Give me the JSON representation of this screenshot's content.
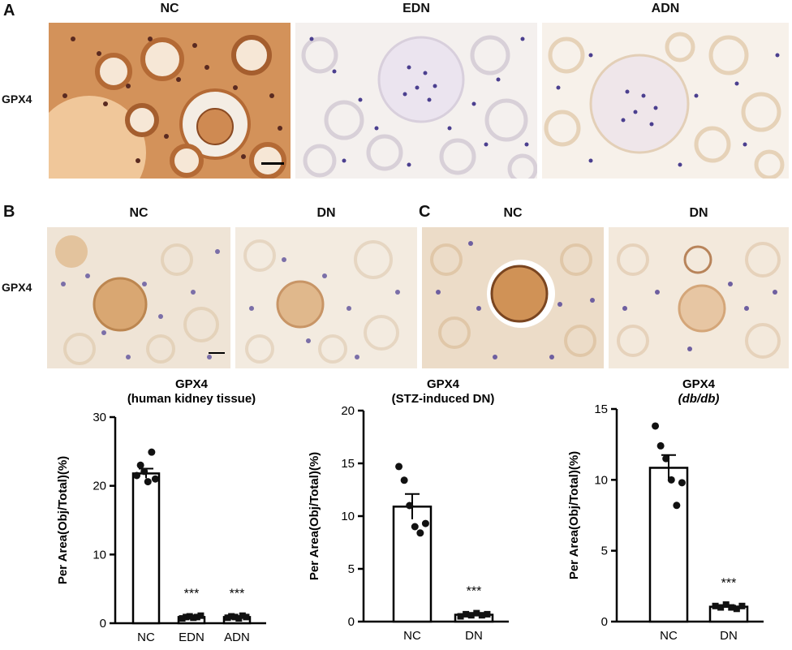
{
  "panel_a": {
    "letter": "A",
    "row_label": "GPX4",
    "columns": [
      "NC",
      "EDN",
      "ADN"
    ]
  },
  "panel_b": {
    "letter": "B",
    "row_label": "GPX4",
    "columns": [
      "NC",
      "DN"
    ]
  },
  "panel_c": {
    "letter": "C",
    "columns": [
      "NC",
      "DN"
    ]
  },
  "colors": {
    "strong_stain": "#c8844a",
    "weak_stain": "#e9cfae",
    "nuclei": "#4b3f8f",
    "background": "#f4ede4"
  },
  "chart_data": [
    {
      "type": "bar",
      "title": "GPX4",
      "subtitle": "(human kidney tissue)",
      "ylabel": "Per Area(Obj/Total)(%)",
      "categories": [
        "NC",
        "EDN",
        "ADN"
      ],
      "values": [
        21.8,
        0.9,
        0.9
      ],
      "errors": [
        0.7,
        0.12,
        0.12
      ],
      "points": [
        [
          21.5,
          23.0,
          22.1,
          20.6,
          24.9,
          21.0
        ],
        [
          0.7,
          0.9,
          1.0,
          0.8,
          0.9,
          1.1
        ],
        [
          0.8,
          1.0,
          0.9,
          0.7,
          1.1,
          0.9
        ]
      ],
      "significance": [
        "",
        "***",
        "***"
      ],
      "ylim": [
        0,
        30
      ],
      "yticks": [
        0,
        10,
        20,
        30
      ]
    },
    {
      "type": "bar",
      "title": "GPX4",
      "subtitle": "(STZ-induced DN)",
      "ylabel": "Per Area(Obj/Total)(%)",
      "categories": [
        "NC",
        "DN"
      ],
      "values": [
        10.9,
        0.65
      ],
      "errors": [
        1.2,
        0.08
      ],
      "points": [
        [
          14.7,
          13.4,
          11.0,
          9.0,
          8.4,
          9.3
        ],
        [
          0.5,
          0.7,
          0.6,
          0.8,
          0.6,
          0.7
        ]
      ],
      "significance": [
        "",
        "***"
      ],
      "ylim": [
        0,
        20
      ],
      "yticks": [
        0,
        5,
        10,
        15,
        20
      ]
    },
    {
      "type": "bar",
      "title": "GPX4",
      "subtitle": "(db/db)",
      "ylabel": "Per Area(Obj/Total)(%)",
      "categories": [
        "NC",
        "DN"
      ],
      "values": [
        10.85,
        1.05
      ],
      "errors": [
        0.9,
        0.07
      ],
      "points": [
        [
          13.8,
          12.4,
          11.5,
          10.0,
          8.2,
          9.8
        ],
        [
          1.1,
          1.0,
          1.2,
          1.0,
          0.9,
          1.1
        ]
      ],
      "significance": [
        "",
        "***"
      ],
      "ylim": [
        0,
        15
      ],
      "yticks": [
        0,
        5,
        10,
        15
      ]
    }
  ]
}
